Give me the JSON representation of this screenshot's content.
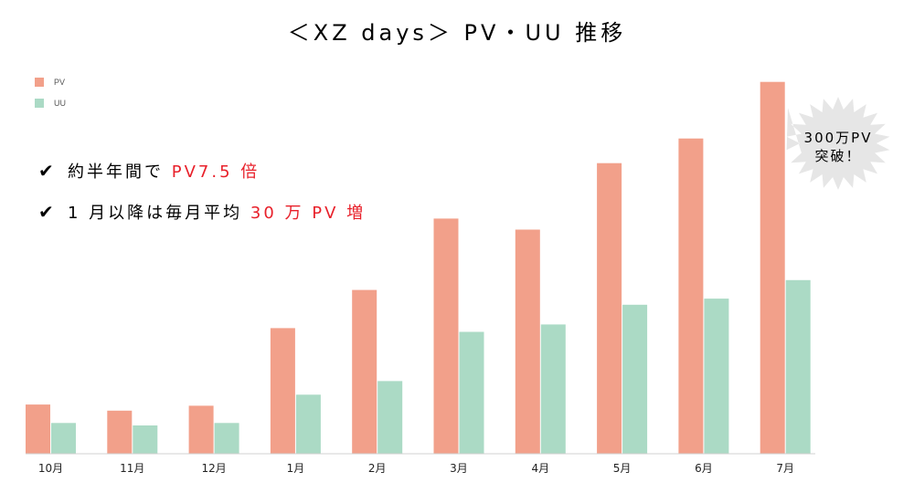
{
  "title": "＜XZ days＞ PV・UU 推移",
  "legend": [
    {
      "name": "PV",
      "color": "#f2a08a"
    },
    {
      "name": "UU",
      "color": "#abdac5"
    }
  ],
  "notes": [
    {
      "check": "✔",
      "text": "約半年間で ",
      "highlight": "PV7.5 倍"
    },
    {
      "check": "✔",
      "text": "1 月以降は毎月平均 ",
      "highlight": "30 万 PV 増"
    }
  ],
  "callout": {
    "line1": "300万PV",
    "line2": "突破！"
  },
  "chart_data": {
    "type": "bar",
    "title": "＜XZ days＞ PV・UU 推移",
    "categories": [
      "10月",
      "11月",
      "12月",
      "1月",
      "2月",
      "3月",
      "4月",
      "5月",
      "6月",
      "7月"
    ],
    "series": [
      {
        "name": "PV",
        "color": "#f2a08a",
        "values": [
          0.4,
          0.35,
          0.39,
          1.02,
          1.33,
          1.91,
          1.82,
          2.36,
          2.56,
          3.02
        ]
      },
      {
        "name": "UU",
        "color": "#abdac5",
        "values": [
          0.25,
          0.23,
          0.25,
          0.48,
          0.59,
          0.99,
          1.05,
          1.21,
          1.26,
          1.41
        ]
      }
    ],
    "ylim": [
      0,
      3.04
    ],
    "grid": false,
    "legend_position": "top-left"
  }
}
